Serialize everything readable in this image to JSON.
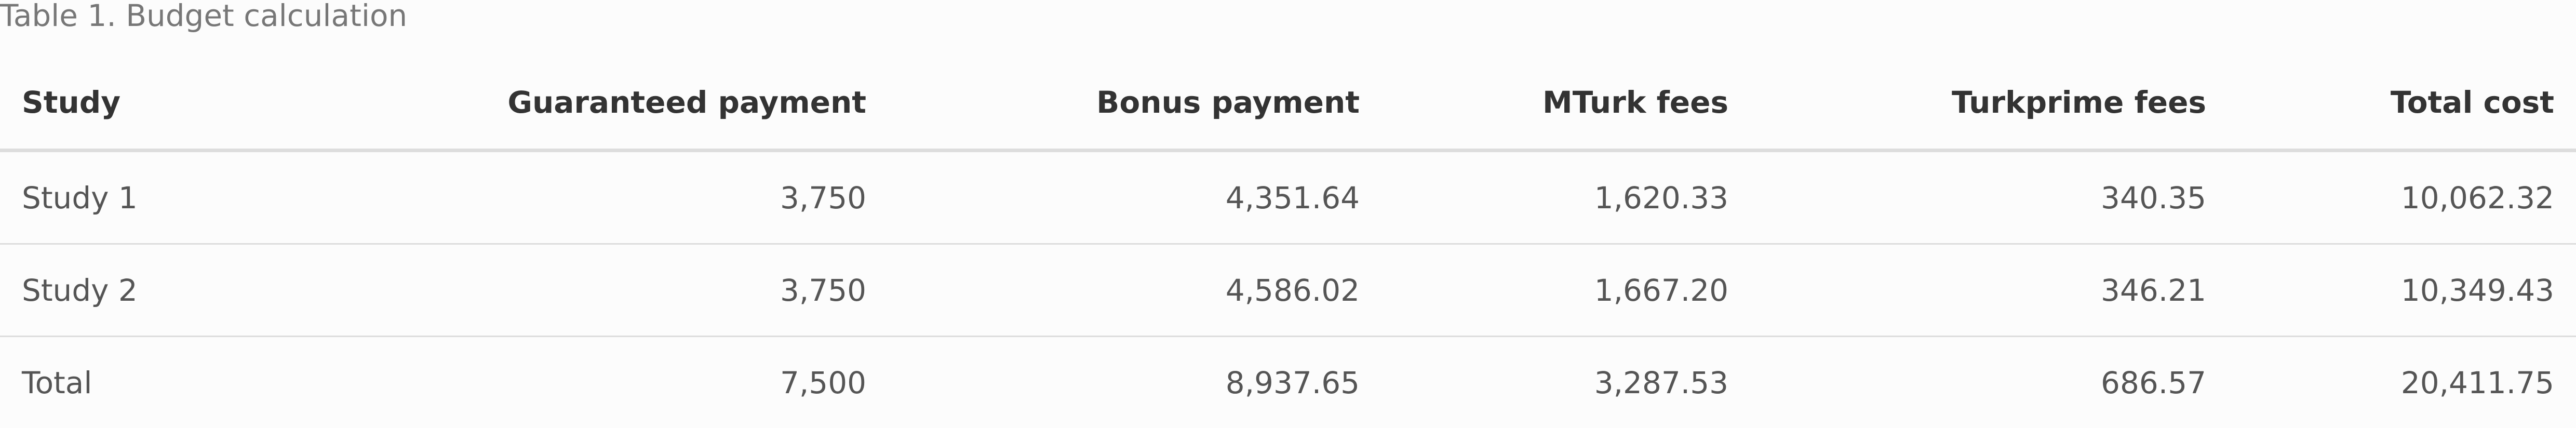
{
  "caption": "Table 1. Budget calculation",
  "table": {
    "headers": [
      "Study",
      "Guaranteed payment",
      "Bonus payment",
      "MTurk fees",
      "Turkprime fees",
      "Total cost"
    ],
    "rows": [
      [
        "Study 1",
        "3,750",
        "4,351.64",
        "1,620.33",
        "340.35",
        "10,062.32"
      ],
      [
        "Study 2",
        "3,750",
        "4,586.02",
        "1,667.20",
        "346.21",
        "10,349.43"
      ],
      [
        "Total",
        "7,500",
        "8,937.65",
        "3,287.53",
        "686.57",
        "20,411.75"
      ]
    ]
  }
}
